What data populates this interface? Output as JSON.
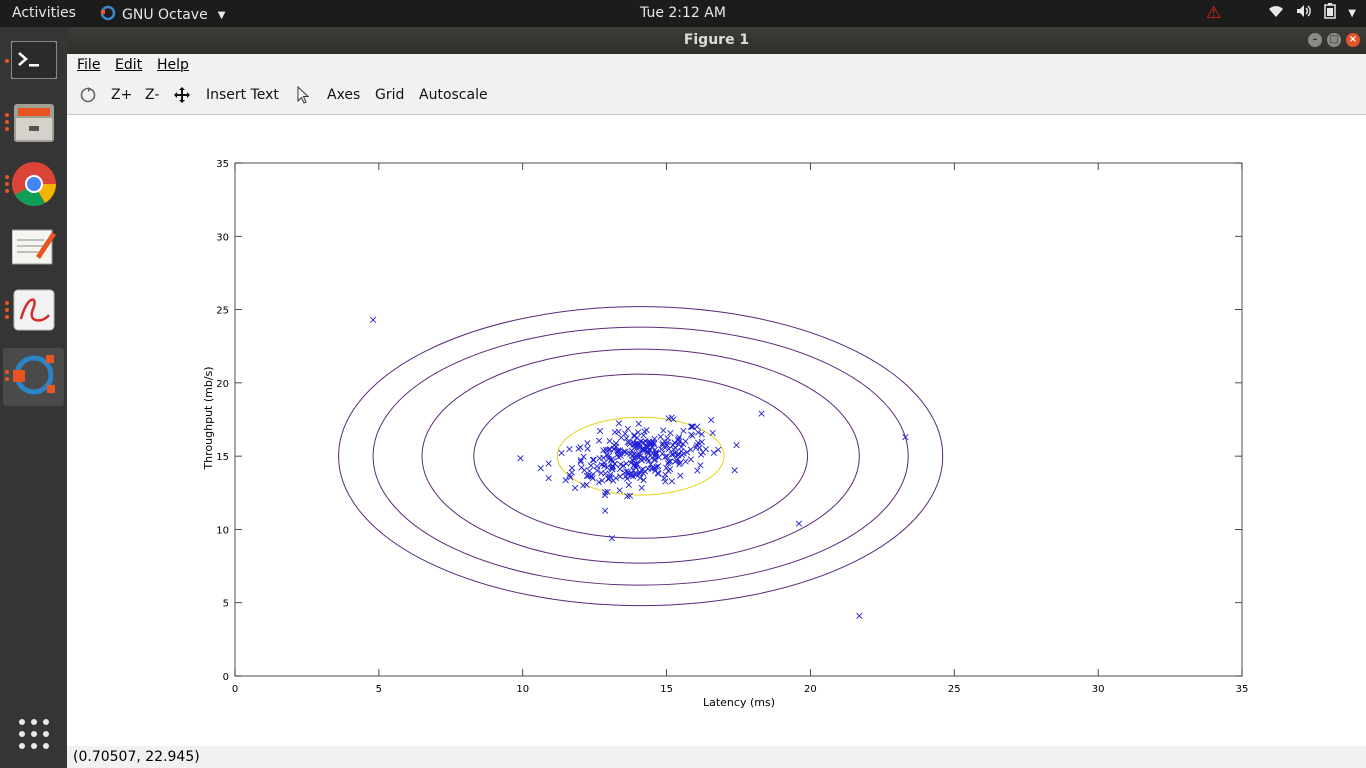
{
  "topbar": {
    "activities": "Activities",
    "app_name": "GNU Octave",
    "clock": "Tue  2:12 AM"
  },
  "dock": {
    "items": [
      "terminal-icon",
      "files-icon",
      "chrome-icon",
      "text-editor-icon",
      "document-viewer-icon",
      "octave-icon"
    ],
    "show_apps_icon": "grid-icon"
  },
  "window": {
    "title": "Figure 1"
  },
  "menubar": {
    "file": "File",
    "edit": "Edit",
    "help": "Help"
  },
  "toolbar": {
    "zoom_in": "Z+",
    "zoom_out": "Z-",
    "insert_text": "Insert Text",
    "axes": "Axes",
    "grid": "Grid",
    "autoscale": "Autoscale"
  },
  "status": {
    "coords": "(0.70507, 22.945)"
  },
  "chart_data": {
    "type": "scatter",
    "xlabel": "Latency (ms)",
    "ylabel": "Throughput (mb/s)",
    "xlim": [
      0,
      35
    ],
    "ylim": [
      0,
      35
    ],
    "xticks": [
      0,
      5,
      10,
      15,
      20,
      25,
      30,
      35
    ],
    "yticks": [
      0,
      5,
      10,
      15,
      20,
      25,
      30,
      35
    ],
    "marker": "x",
    "marker_color": "#1f1fd6",
    "contour": {
      "center": [
        14.1,
        15.0
      ],
      "colors": [
        "#e6d21a",
        "#5b2a7a",
        "#5b2a7a",
        "#5b2a7a",
        "#5b2a7a"
      ],
      "semi_axes": [
        [
          2.9,
          2.65
        ],
        [
          5.8,
          5.6
        ],
        [
          7.6,
          7.3
        ],
        [
          9.3,
          8.8
        ],
        [
          10.5,
          10.2
        ]
      ]
    },
    "outliers": [
      [
        4.8,
        24.3
      ],
      [
        18.3,
        17.9
      ],
      [
        23.3,
        16.3
      ],
      [
        19.6,
        10.4
      ],
      [
        21.7,
        4.1
      ],
      [
        13.1,
        9.4
      ],
      [
        10.9,
        14.5
      ],
      [
        10.9,
        13.5
      ],
      [
        12.1,
        13.0
      ],
      [
        16.2,
        15.1
      ]
    ],
    "cluster": {
      "center": [
        14.1,
        15.0
      ],
      "spread": [
        1.2,
        1.05
      ],
      "count": 297
    }
  }
}
